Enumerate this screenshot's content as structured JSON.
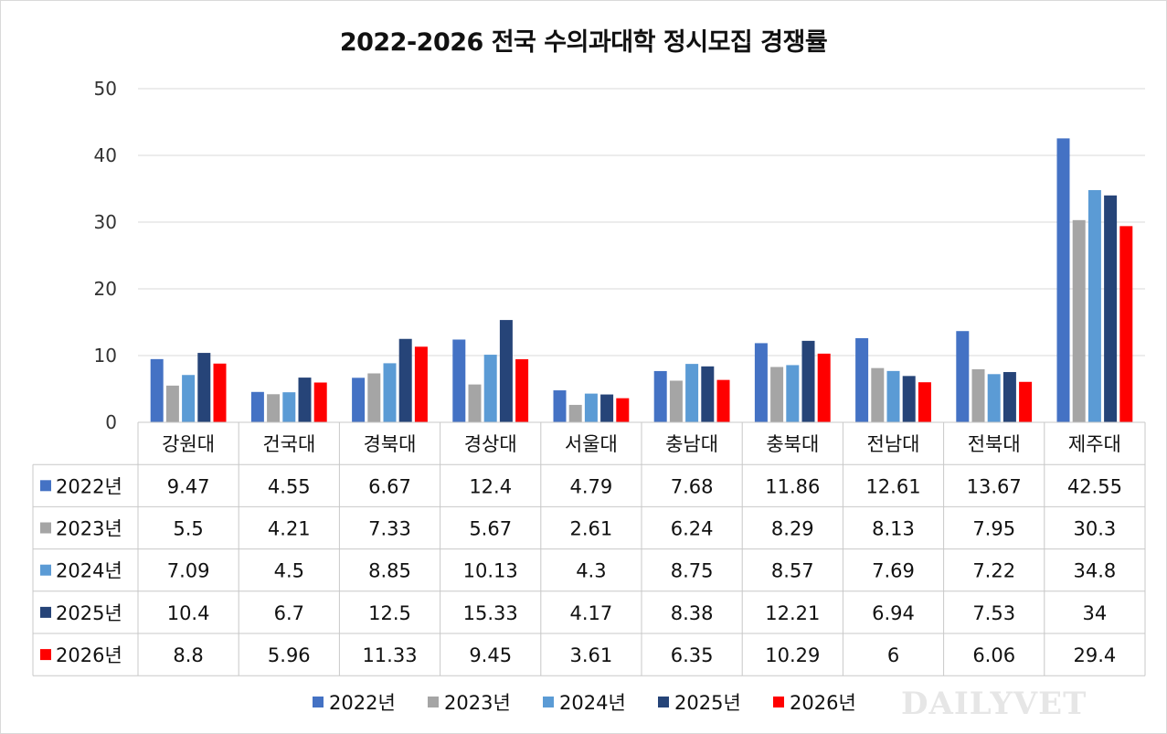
{
  "chart_data": {
    "type": "bar",
    "title": "2022-2026 전국 수의과대학 정시모집 경쟁률",
    "categories": [
      "강원대",
      "건국대",
      "경북대",
      "경상대",
      "서울대",
      "충남대",
      "충북대",
      "전남대",
      "전북대",
      "제주대"
    ],
    "series": [
      {
        "name": "2022년",
        "color": "#4472C4",
        "values": [
          9.47,
          4.55,
          6.67,
          12.4,
          4.79,
          7.68,
          11.86,
          12.61,
          13.67,
          42.55
        ]
      },
      {
        "name": "2023년",
        "color": "#A5A5A5",
        "values": [
          5.5,
          4.21,
          7.33,
          5.67,
          2.61,
          6.24,
          8.29,
          8.13,
          7.95,
          30.3
        ]
      },
      {
        "name": "2024년",
        "color": "#5B9BD5",
        "values": [
          7.09,
          4.5,
          8.85,
          10.13,
          4.3,
          8.75,
          8.57,
          7.69,
          7.22,
          34.8
        ]
      },
      {
        "name": "2025년",
        "color": "#264478",
        "values": [
          10.4,
          6.7,
          12.5,
          15.33,
          4.17,
          8.38,
          12.21,
          6.94,
          7.53,
          34
        ]
      },
      {
        "name": "2026년",
        "color": "#FF0000",
        "values": [
          8.8,
          5.96,
          11.33,
          9.45,
          3.61,
          6.35,
          10.29,
          6,
          6.06,
          29.4
        ]
      }
    ],
    "table_labels": [
      [
        "9.47",
        "4.55",
        "6.67",
        "12.4",
        "4.79",
        "7.68",
        "11.86",
        "12.61",
        "13.67",
        "42.55"
      ],
      [
        "5.5",
        "4.21",
        "7.33",
        "5.67",
        "2.61",
        "6.24",
        "8.29",
        "8.13",
        "7.95",
        "30.3"
      ],
      [
        "7.09",
        "4.5",
        "8.85",
        "10.13",
        "4.3",
        "8.75",
        "8.57",
        "7.69",
        "7.22",
        "34.8"
      ],
      [
        "10.4",
        "6.7",
        "12.5",
        "15.33",
        "4.17",
        "8.38",
        "12.21",
        "6.94",
        "7.53",
        "34"
      ],
      [
        "8.8",
        "5.96",
        "11.33",
        "9.45",
        "3.61",
        "6.35",
        "10.29",
        "6",
        "6.06",
        "29.4"
      ]
    ],
    "ylim": [
      0,
      50
    ],
    "yticks": [
      0,
      10,
      20,
      30,
      40,
      50
    ],
    "xlabel": "",
    "ylabel": "",
    "grid": true,
    "legend": "bottom-center"
  },
  "watermark": "DAILYVET"
}
